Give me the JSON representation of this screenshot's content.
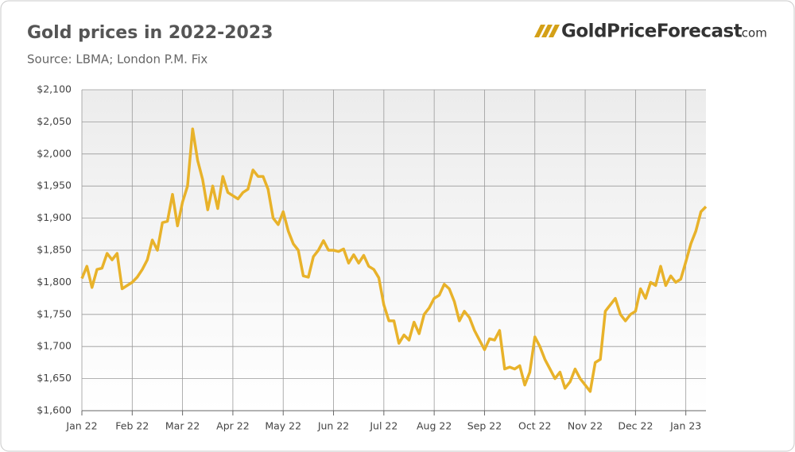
{
  "chart_data": {
    "type": "line",
    "title": "Gold prices in 2022-2023",
    "subtitle": "Source: LBMA; London P.M. Fix",
    "logo": "GoldPriceForecast",
    "logo_suffix": ".com",
    "color": "#e8b22a",
    "grid": true,
    "ylim": [
      1600,
      2100
    ],
    "yticks": [
      {
        "value": 1600,
        "label": "$1,600"
      },
      {
        "value": 1650,
        "label": "$1,650"
      },
      {
        "value": 1700,
        "label": "$1,700"
      },
      {
        "value": 1750,
        "label": "$1,750"
      },
      {
        "value": 1800,
        "label": "$1,800"
      },
      {
        "value": 1850,
        "label": "$1,850"
      },
      {
        "value": 1900,
        "label": "$1,900"
      },
      {
        "value": 1950,
        "label": "$1,950"
      },
      {
        "value": 2000,
        "label": "$2,000"
      },
      {
        "value": 2050,
        "label": "$2,050"
      },
      {
        "value": 2100,
        "label": "$2,100"
      }
    ],
    "categories": [
      "Jan 22",
      null,
      null,
      null,
      null,
      null,
      null,
      null,
      null,
      null,
      "Feb 22",
      null,
      null,
      null,
      null,
      null,
      null,
      null,
      null,
      null,
      "Mar 22",
      null,
      null,
      null,
      null,
      null,
      null,
      null,
      null,
      null,
      "Apr 22",
      null,
      null,
      null,
      null,
      null,
      null,
      null,
      null,
      null,
      "May 22",
      null,
      null,
      null,
      null,
      null,
      null,
      null,
      null,
      null,
      "Jun 22",
      null,
      null,
      null,
      null,
      null,
      null,
      null,
      null,
      null,
      "Jul 22",
      null,
      null,
      null,
      null,
      null,
      null,
      null,
      null,
      null,
      "Aug 22",
      null,
      null,
      null,
      null,
      null,
      null,
      null,
      null,
      null,
      "Sep 22",
      null,
      null,
      null,
      null,
      null,
      null,
      null,
      null,
      null,
      "Oct 22",
      null,
      null,
      null,
      null,
      null,
      null,
      null,
      null,
      null,
      "Nov 22",
      null,
      null,
      null,
      null,
      null,
      null,
      null,
      null,
      null,
      "Dec 22",
      null,
      null,
      null,
      null,
      null,
      null,
      null,
      null,
      null,
      "Jan 23",
      null,
      null,
      null,
      null
    ],
    "values": [
      1806,
      1825,
      1792,
      1820,
      1822,
      1845,
      1835,
      1845,
      1790,
      1795,
      1800,
      1808,
      1820,
      1835,
      1866,
      1850,
      1893,
      1895,
      1937,
      1888,
      1925,
      1950,
      2039,
      1990,
      1960,
      1913,
      1950,
      1915,
      1965,
      1940,
      1935,
      1930,
      1940,
      1945,
      1975,
      1965,
      1965,
      1945,
      1900,
      1890,
      1910,
      1880,
      1860,
      1850,
      1810,
      1808,
      1840,
      1850,
      1865,
      1850,
      1850,
      1848,
      1852,
      1830,
      1843,
      1830,
      1842,
      1825,
      1820,
      1807,
      1765,
      1740,
      1740,
      1705,
      1718,
      1710,
      1738,
      1720,
      1750,
      1760,
      1775,
      1780,
      1797,
      1790,
      1770,
      1740,
      1755,
      1745,
      1725,
      1710,
      1695,
      1712,
      1710,
      1725,
      1665,
      1668,
      1665,
      1670,
      1640,
      1660,
      1715,
      1700,
      1680,
      1665,
      1650,
      1660,
      1635,
      1645,
      1665,
      1650,
      1640,
      1630,
      1675,
      1680,
      1755,
      1765,
      1775,
      1750,
      1740,
      1750,
      1755,
      1790,
      1775,
      1800,
      1795,
      1825,
      1795,
      1810,
      1800,
      1805,
      1832,
      1860,
      1880,
      1910,
      1918
    ]
  }
}
